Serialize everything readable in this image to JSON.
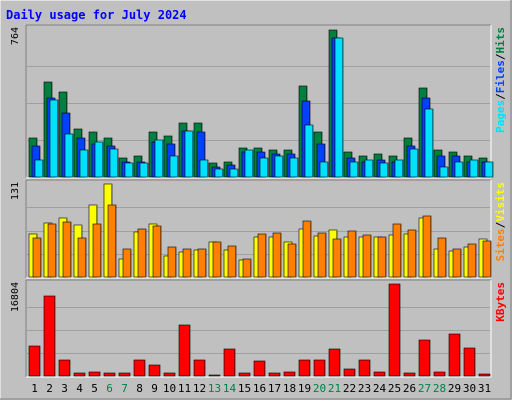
{
  "chart_data": {
    "type": "bar",
    "title": "Daily usage for July 2024",
    "days": [
      "1",
      "2",
      "3",
      "4",
      "5",
      "6",
      "7",
      "8",
      "9",
      "10",
      "11",
      "12",
      "13",
      "14",
      "15",
      "16",
      "17",
      "18",
      "19",
      "20",
      "21",
      "22",
      "23",
      "24",
      "25",
      "26",
      "27",
      "28",
      "29",
      "30",
      "31"
    ],
    "weekend_days": [
      "6",
      "7",
      "13",
      "14",
      "20",
      "21",
      "27",
      "28"
    ],
    "panels": [
      {
        "id": "hits-files-pages",
        "ymax": 764,
        "ymax_label": "764",
        "series": [
          {
            "name": "Hits",
            "color": "#008040",
            "values": [
              200,
              490,
              440,
              250,
              230,
              200,
              100,
              110,
              230,
              210,
              280,
              280,
              70,
              80,
              150,
              150,
              140,
              140,
              470,
              230,
              758,
              130,
              110,
              120,
              110,
              200,
              460,
              140,
              130,
              110,
              100
            ]
          },
          {
            "name": "Files",
            "color": "#0040ff",
            "values": [
              160,
              410,
              330,
              200,
              170,
              160,
              80,
              80,
              180,
              170,
              240,
              230,
              50,
              60,
              130,
              130,
              120,
              120,
              390,
              170,
              720,
              100,
              80,
              90,
              80,
              160,
              410,
              110,
              110,
              80,
              80
            ]
          },
          {
            "name": "Pages",
            "color": "#00e0ff",
            "values": [
              90,
              400,
              220,
              140,
              180,
              145,
              70,
              70,
              190,
              110,
              240,
              90,
              40,
              40,
              140,
              100,
              110,
              100,
              270,
              80,
              720,
              80,
              90,
              70,
              90,
              145,
              350,
              50,
              80,
              90,
              80
            ]
          }
        ],
        "legend": [
          "Pages",
          "Files",
          "Hits"
        ],
        "legend_separator": "/"
      },
      {
        "id": "visits-sites",
        "ymax": 131,
        "ymax_label": "131",
        "series": [
          {
            "name": "Visits",
            "color": "#ffff00",
            "values": [
              60,
              76,
              83,
              73,
              101,
              131,
              25,
              63,
              74,
              29,
              35,
              38,
              49,
              38,
              24,
              56,
              56,
              49,
              67,
              58,
              66,
              57,
              56,
              57,
              59,
              61,
              83,
              40,
              36,
              42,
              53
            ]
          },
          {
            "name": "Sites",
            "color": "#ff8000",
            "values": [
              55,
              74,
              78,
              55,
              75,
              102,
              40,
              68,
              72,
              42,
              39,
              40,
              50,
              44,
              25,
              60,
              62,
              47,
              79,
              62,
              54,
              65,
              59,
              56,
              74,
              66,
              86,
              55,
              39,
              46,
              51
            ]
          }
        ],
        "legend": [
          "Sites",
          "Visits"
        ],
        "legend_separator": "/"
      },
      {
        "id": "kbytes",
        "ymax": 16804,
        "ymax_label": "16804",
        "series": [
          {
            "name": "KBytes",
            "color": "#ff0000",
            "values": [
              5500,
              14700,
              3000,
              600,
              700,
              500,
              600,
              3000,
              2100,
              500,
              9300,
              3000,
              200,
              5000,
              600,
              2800,
              500,
              700,
              2900,
              3000,
              5000,
              1200,
              2900,
              800,
              16804,
              500,
              6500,
              700,
              7600,
              5200,
              300
            ]
          }
        ],
        "legend": [
          "KBytes"
        ],
        "legend_separator": ""
      }
    ]
  },
  "colors": {
    "background": "#c0c0c0",
    "weekday_label": "#000000",
    "weekend_label": "#00804a",
    "title": "#0000ff"
  }
}
